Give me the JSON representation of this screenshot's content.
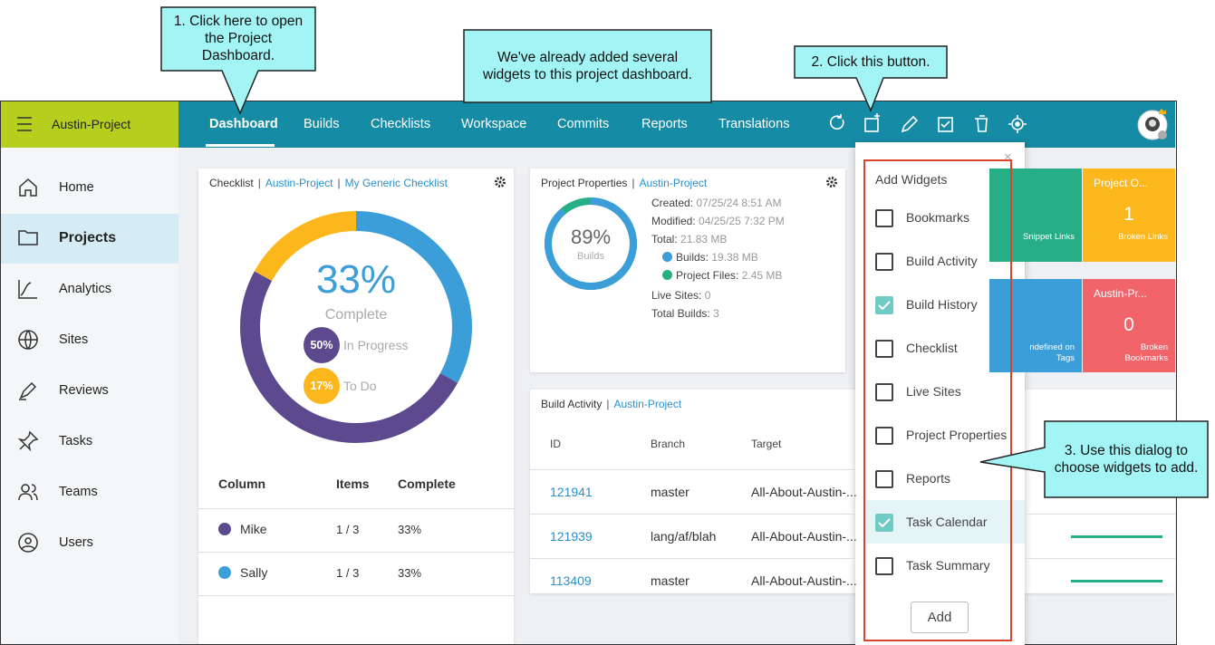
{
  "callouts": [
    {
      "lines": [
        "1. Click here to open",
        "the Project",
        "Dashboard."
      ]
    },
    {
      "lines": [
        "We've already added several",
        "widgets to this project dashboard."
      ]
    },
    {
      "lines": [
        "2. Click this button."
      ]
    },
    {
      "lines": [
        "3. Use this dialog to",
        "choose widgets to add."
      ]
    }
  ],
  "topbar": {
    "project": "Austin-Project",
    "nav": [
      "Dashboard",
      "Builds",
      "Checklists",
      "Workspace",
      "Commits",
      "Reports",
      "Translations"
    ],
    "active": 0
  },
  "sidebar": {
    "items": [
      "Home",
      "Projects",
      "Analytics",
      "Sites",
      "Reviews",
      "Tasks",
      "Teams",
      "Users"
    ],
    "active": 1
  },
  "checklist": {
    "title": "Checklist",
    "project": "Austin-Project",
    "name": "My Generic Checklist",
    "complete": {
      "value": 33,
      "label": "33%",
      "text": "Complete",
      "color": "#3b9ed8"
    },
    "segments": [
      {
        "name": "In Progress",
        "value": 50,
        "label": "50%",
        "color": "#5d4a8e"
      },
      {
        "name": "To Do",
        "value": 17,
        "label": "17%",
        "color": "#fbb71c"
      }
    ],
    "columns": [
      "Column",
      "Items",
      "Complete"
    ],
    "rows": [
      {
        "name": "Mike",
        "color": "#5d4a8e",
        "items": "1 / 3",
        "complete": "33%"
      },
      {
        "name": "Sally",
        "color": "#3b9ed8",
        "items": "1 / 3",
        "complete": "33%"
      }
    ]
  },
  "properties": {
    "title": "Project Properties",
    "project": "Austin-Project",
    "builds": {
      "value": 89,
      "label": "89%",
      "text": "Builds",
      "color": "#3b9ed8",
      "track": "#26ae87"
    },
    "lines": [
      {
        "label": "Created:",
        "value": "07/25/24 8:51 AM"
      },
      {
        "label": "Modified:",
        "value": "04/25/25 7:32 PM"
      },
      {
        "label": "Total:",
        "value": "21.83 MB"
      },
      {
        "label": "Builds:",
        "value": "19.38 MB",
        "dot": "#3b9ed8"
      },
      {
        "label": "Project Files:",
        "value": "2.45 MB",
        "dot": "#26ae87"
      },
      {
        "label": "Live Sites:",
        "value": "0"
      },
      {
        "label": "Total Builds:",
        "value": "3"
      }
    ]
  },
  "build_activity": {
    "title": "Build Activity",
    "project": "Austin-Project",
    "columns": [
      "ID",
      "Branch",
      "Target"
    ],
    "rows": [
      [
        "121941",
        "master",
        "All-About-Austin-..."
      ],
      [
        "121939",
        "lang/af/blah",
        "All-About-Austin-..."
      ],
      [
        "113409",
        "master",
        "All-About-Austin-..."
      ]
    ]
  },
  "tiles": [
    {
      "label": "Snippet Links",
      "color": "#27ae87"
    },
    {
      "title": "Project O...",
      "value": 1,
      "label": "Broken Links",
      "color": "#fbb71c"
    },
    {
      "label": "ndefined on Tags",
      "color": "#3b9ed8"
    },
    {
      "title": "Austin-Pr...",
      "value": 0,
      "label": "Broken Bookmarks",
      "color": "#f0646a"
    }
  ],
  "dialog": {
    "title": "Add Widgets",
    "items": [
      {
        "label": "Bookmarks",
        "checked": false
      },
      {
        "label": "Build Activity",
        "checked": false
      },
      {
        "label": "Build History",
        "checked": true
      },
      {
        "label": "Checklist",
        "checked": false
      },
      {
        "label": "Live Sites",
        "checked": false
      },
      {
        "label": "Project Properties",
        "checked": false
      },
      {
        "label": "Reports",
        "checked": false
      },
      {
        "label": "Task Calendar",
        "checked": true
      },
      {
        "label": "Task Summary",
        "checked": false
      }
    ],
    "button": "Add"
  }
}
